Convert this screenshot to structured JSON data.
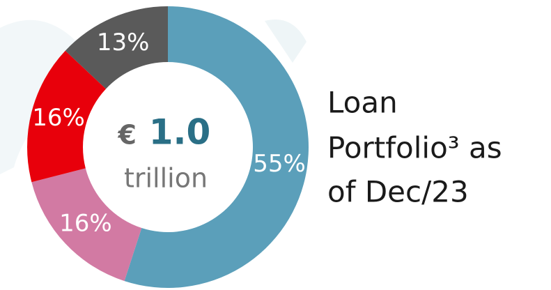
{
  "chart_data": {
    "type": "donut",
    "title_lines": [
      "Loan",
      "Portfolio³ as",
      "of Dec/23"
    ],
    "center_text": {
      "currency": "€",
      "amount": "1.0",
      "unit": "trillion"
    },
    "values": [
      55,
      16,
      16,
      13
    ],
    "value_labels": [
      "55%",
      "16%",
      "16%",
      "13%"
    ],
    "colors": [
      "#5b9fba",
      "#d27aa3",
      "#e8000b",
      "#5a5a5a"
    ]
  }
}
